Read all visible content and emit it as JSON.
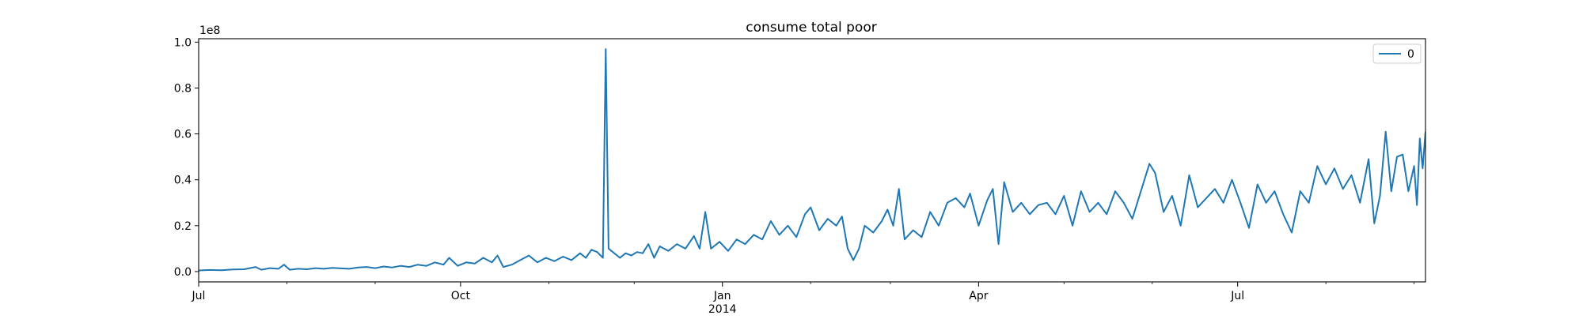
{
  "chart_data": {
    "type": "line",
    "title": "consume total poor",
    "xlabel": "",
    "ylabel": "",
    "y_offset_text": "1e8",
    "x_range": [
      "2013-07-01",
      "2014-09-05"
    ],
    "ylim": [
      -0.045,
      1.015
    ],
    "y_ticks": [
      {
        "value": 0.0,
        "label": "0.0"
      },
      {
        "value": 0.2,
        "label": "0.2"
      },
      {
        "value": 0.4,
        "label": "0.4"
      },
      {
        "value": 0.6,
        "label": "0.6"
      },
      {
        "value": 0.8,
        "label": "0.8"
      },
      {
        "value": 1.0,
        "label": "1.0"
      }
    ],
    "x_major_ticks": [
      {
        "date": "2013-07-01",
        "label": "Jul",
        "sublabel": ""
      },
      {
        "date": "2013-10-01",
        "label": "Oct",
        "sublabel": ""
      },
      {
        "date": "2014-01-01",
        "label": "Jan",
        "sublabel": "2014"
      },
      {
        "date": "2014-04-01",
        "label": "Apr",
        "sublabel": ""
      },
      {
        "date": "2014-07-01",
        "label": "Jul",
        "sublabel": ""
      }
    ],
    "x_minor_ticks": [
      "2013-08-01",
      "2013-09-01",
      "2013-11-01",
      "2013-12-01",
      "2014-02-01",
      "2014-03-01",
      "2014-05-01",
      "2014-06-01",
      "2014-08-01",
      "2014-09-01"
    ],
    "grid": false,
    "legend_position": "top-right",
    "series": [
      {
        "name": "0",
        "color": "#1f77b4",
        "points": [
          [
            "2013-07-01",
            0.005
          ],
          [
            "2013-07-05",
            0.007
          ],
          [
            "2013-07-09",
            0.006
          ],
          [
            "2013-07-13",
            0.009
          ],
          [
            "2013-07-17",
            0.01
          ],
          [
            "2013-07-21",
            0.02
          ],
          [
            "2013-07-23",
            0.008
          ],
          [
            "2013-07-26",
            0.015
          ],
          [
            "2013-07-29",
            0.012
          ],
          [
            "2013-07-31",
            0.03
          ],
          [
            "2013-08-02",
            0.008
          ],
          [
            "2013-08-05",
            0.012
          ],
          [
            "2013-08-08",
            0.01
          ],
          [
            "2013-08-11",
            0.015
          ],
          [
            "2013-08-14",
            0.012
          ],
          [
            "2013-08-17",
            0.016
          ],
          [
            "2013-08-20",
            0.014
          ],
          [
            "2013-08-23",
            0.012
          ],
          [
            "2013-08-26",
            0.018
          ],
          [
            "2013-08-29",
            0.02
          ],
          [
            "2013-09-01",
            0.015
          ],
          [
            "2013-09-04",
            0.022
          ],
          [
            "2013-09-07",
            0.018
          ],
          [
            "2013-09-10",
            0.025
          ],
          [
            "2013-09-13",
            0.02
          ],
          [
            "2013-09-16",
            0.03
          ],
          [
            "2013-09-19",
            0.025
          ],
          [
            "2013-09-22",
            0.04
          ],
          [
            "2013-09-25",
            0.03
          ],
          [
            "2013-09-27",
            0.06
          ],
          [
            "2013-09-30",
            0.025
          ],
          [
            "2013-10-03",
            0.04
          ],
          [
            "2013-10-06",
            0.035
          ],
          [
            "2013-10-09",
            0.06
          ],
          [
            "2013-10-12",
            0.04
          ],
          [
            "2013-10-14",
            0.07
          ],
          [
            "2013-10-16",
            0.02
          ],
          [
            "2013-10-19",
            0.03
          ],
          [
            "2013-10-22",
            0.05
          ],
          [
            "2013-10-25",
            0.07
          ],
          [
            "2013-10-28",
            0.04
          ],
          [
            "2013-10-31",
            0.06
          ],
          [
            "2013-11-03",
            0.045
          ],
          [
            "2013-11-06",
            0.065
          ],
          [
            "2013-11-09",
            0.05
          ],
          [
            "2013-11-12",
            0.08
          ],
          [
            "2013-11-14",
            0.06
          ],
          [
            "2013-11-16",
            0.095
          ],
          [
            "2013-11-18",
            0.085
          ],
          [
            "2013-11-20",
            0.06
          ],
          [
            "2013-11-21",
            0.97
          ],
          [
            "2013-11-22",
            0.1
          ],
          [
            "2013-11-24",
            0.08
          ],
          [
            "2013-11-26",
            0.06
          ],
          [
            "2013-11-28",
            0.08
          ],
          [
            "2013-11-30",
            0.07
          ],
          [
            "2013-12-02",
            0.085
          ],
          [
            "2013-12-04",
            0.08
          ],
          [
            "2013-12-06",
            0.12
          ],
          [
            "2013-12-08",
            0.06
          ],
          [
            "2013-12-10",
            0.11
          ],
          [
            "2013-12-13",
            0.09
          ],
          [
            "2013-12-16",
            0.12
          ],
          [
            "2013-12-19",
            0.1
          ],
          [
            "2013-12-22",
            0.155
          ],
          [
            "2013-12-24",
            0.1
          ],
          [
            "2013-12-26",
            0.26
          ],
          [
            "2013-12-28",
            0.1
          ],
          [
            "2013-12-31",
            0.13
          ],
          [
            "2014-01-03",
            0.09
          ],
          [
            "2014-01-06",
            0.14
          ],
          [
            "2014-01-09",
            0.12
          ],
          [
            "2014-01-12",
            0.16
          ],
          [
            "2014-01-15",
            0.14
          ],
          [
            "2014-01-18",
            0.22
          ],
          [
            "2014-01-21",
            0.16
          ],
          [
            "2014-01-24",
            0.2
          ],
          [
            "2014-01-27",
            0.15
          ],
          [
            "2014-01-30",
            0.25
          ],
          [
            "2014-02-01",
            0.28
          ],
          [
            "2014-02-04",
            0.18
          ],
          [
            "2014-02-07",
            0.23
          ],
          [
            "2014-02-10",
            0.2
          ],
          [
            "2014-02-12",
            0.24
          ],
          [
            "2014-02-14",
            0.1
          ],
          [
            "2014-02-16",
            0.05
          ],
          [
            "2014-02-18",
            0.1
          ],
          [
            "2014-02-20",
            0.2
          ],
          [
            "2014-02-23",
            0.17
          ],
          [
            "2014-02-26",
            0.22
          ],
          [
            "2014-02-28",
            0.27
          ],
          [
            "2014-03-02",
            0.2
          ],
          [
            "2014-03-04",
            0.36
          ],
          [
            "2014-03-06",
            0.14
          ],
          [
            "2014-03-09",
            0.18
          ],
          [
            "2014-03-12",
            0.15
          ],
          [
            "2014-03-15",
            0.26
          ],
          [
            "2014-03-18",
            0.2
          ],
          [
            "2014-03-21",
            0.3
          ],
          [
            "2014-03-24",
            0.32
          ],
          [
            "2014-03-27",
            0.28
          ],
          [
            "2014-03-29",
            0.34
          ],
          [
            "2014-04-01",
            0.2
          ],
          [
            "2014-04-04",
            0.31
          ],
          [
            "2014-04-06",
            0.36
          ],
          [
            "2014-04-08",
            0.12
          ],
          [
            "2014-04-10",
            0.39
          ],
          [
            "2014-04-13",
            0.26
          ],
          [
            "2014-04-16",
            0.3
          ],
          [
            "2014-04-19",
            0.25
          ],
          [
            "2014-04-22",
            0.29
          ],
          [
            "2014-04-25",
            0.3
          ],
          [
            "2014-04-28",
            0.25
          ],
          [
            "2014-05-01",
            0.33
          ],
          [
            "2014-05-04",
            0.2
          ],
          [
            "2014-05-07",
            0.35
          ],
          [
            "2014-05-10",
            0.26
          ],
          [
            "2014-05-13",
            0.3
          ],
          [
            "2014-05-16",
            0.25
          ],
          [
            "2014-05-19",
            0.35
          ],
          [
            "2014-05-22",
            0.3
          ],
          [
            "2014-05-25",
            0.23
          ],
          [
            "2014-05-28",
            0.35
          ],
          [
            "2014-05-31",
            0.47
          ],
          [
            "2014-06-02",
            0.43
          ],
          [
            "2014-06-05",
            0.26
          ],
          [
            "2014-06-08",
            0.33
          ],
          [
            "2014-06-11",
            0.2
          ],
          [
            "2014-06-14",
            0.42
          ],
          [
            "2014-06-17",
            0.28
          ],
          [
            "2014-06-20",
            0.32
          ],
          [
            "2014-06-23",
            0.36
          ],
          [
            "2014-06-26",
            0.3
          ],
          [
            "2014-06-29",
            0.4
          ],
          [
            "2014-07-02",
            0.3
          ],
          [
            "2014-07-05",
            0.19
          ],
          [
            "2014-07-08",
            0.38
          ],
          [
            "2014-07-11",
            0.3
          ],
          [
            "2014-07-14",
            0.35
          ],
          [
            "2014-07-17",
            0.25
          ],
          [
            "2014-07-20",
            0.17
          ],
          [
            "2014-07-23",
            0.35
          ],
          [
            "2014-07-26",
            0.3
          ],
          [
            "2014-07-29",
            0.46
          ],
          [
            "2014-08-01",
            0.38
          ],
          [
            "2014-08-04",
            0.45
          ],
          [
            "2014-08-07",
            0.36
          ],
          [
            "2014-08-10",
            0.42
          ],
          [
            "2014-08-13",
            0.3
          ],
          [
            "2014-08-16",
            0.49
          ],
          [
            "2014-08-18",
            0.21
          ],
          [
            "2014-08-20",
            0.33
          ],
          [
            "2014-08-22",
            0.61
          ],
          [
            "2014-08-24",
            0.35
          ],
          [
            "2014-08-26",
            0.5
          ],
          [
            "2014-08-28",
            0.51
          ],
          [
            "2014-08-30",
            0.35
          ],
          [
            "2014-09-01",
            0.46
          ],
          [
            "2014-09-02",
            0.29
          ],
          [
            "2014-09-03",
            0.58
          ],
          [
            "2014-09-04",
            0.45
          ],
          [
            "2014-09-05",
            0.61
          ]
        ]
      }
    ]
  }
}
